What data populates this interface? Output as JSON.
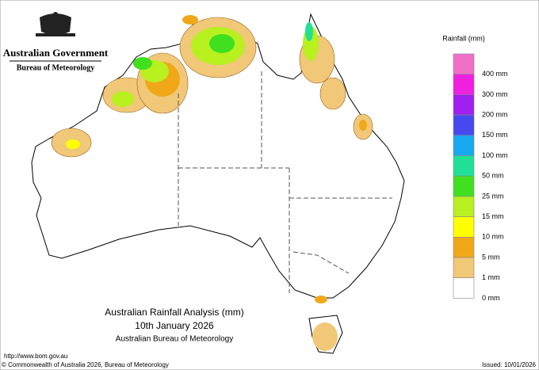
{
  "header": {
    "government": "Australian Government",
    "agency": "Bureau of Meteorology"
  },
  "title": {
    "line1": "Australian Rainfall Analysis (mm)",
    "line2": "10th January 2026",
    "line3": "Australian Bureau of Meteorology"
  },
  "legend": {
    "title": "Rainfall (mm)",
    "items": [
      {
        "label": "400 mm",
        "color": "#f070c8"
      },
      {
        "label": "300 mm",
        "color": "#f020e0"
      },
      {
        "label": "200 mm",
        "color": "#a020f0"
      },
      {
        "label": "150 mm",
        "color": "#4848f0"
      },
      {
        "label": "100 mm",
        "color": "#18a8f0"
      },
      {
        "label": "50 mm",
        "color": "#20e098"
      },
      {
        "label": "25 mm",
        "color": "#40e020"
      },
      {
        "label": "15 mm",
        "color": "#b8f020"
      },
      {
        "label": "10 mm",
        "color": "#ffff00"
      },
      {
        "label": "5 mm",
        "color": "#f0a818"
      },
      {
        "label": "1 mm",
        "color": "#f0c878"
      },
      {
        "label": "0 mm",
        "color": "#ffffff"
      }
    ]
  },
  "footer": {
    "url": "http://www.bom.gov.au",
    "copyright": "© Commonwealth of Australia 2026, Bureau of Meteorology",
    "issued": "Issued: 10/01/2026"
  }
}
